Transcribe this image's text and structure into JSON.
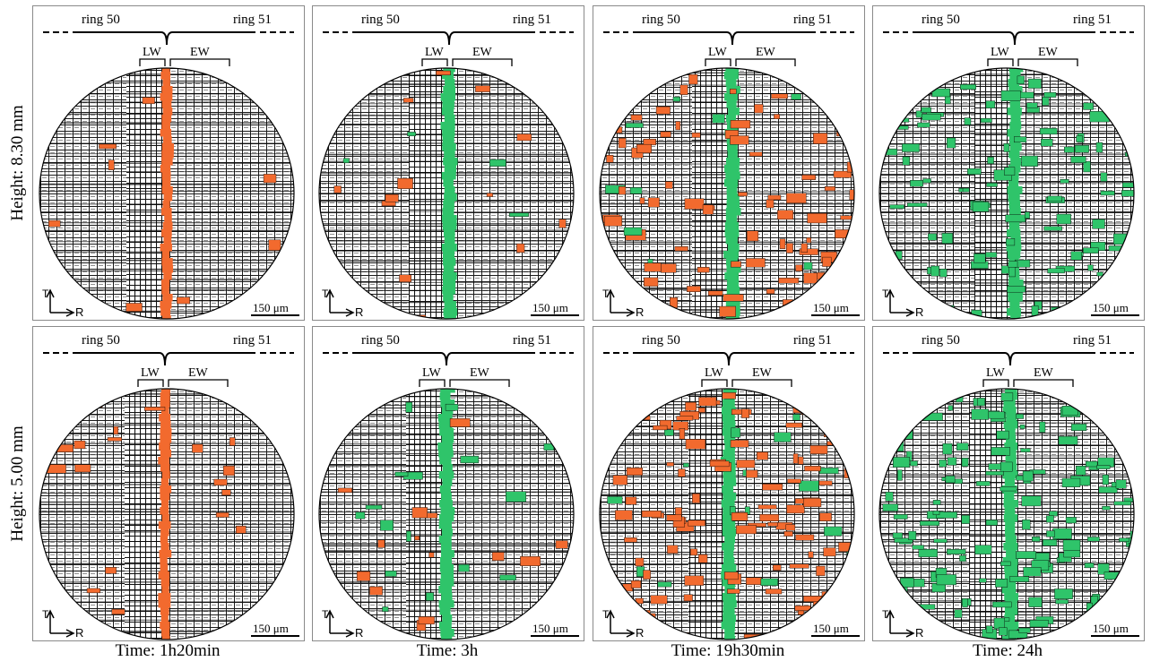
{
  "row_labels": [
    "Height: 8.30 mm",
    "Height: 5.00 mm"
  ],
  "column_labels": [
    "Time: 1h20min",
    "Time: 3h",
    "Time: 19h30min",
    "Time: 24h"
  ],
  "panel_text": {
    "ring_left": "ring 50",
    "ring_right": "ring 51",
    "latewood": "LW",
    "earlywood": "EW",
    "scale_bar": "150 μm",
    "axis_t": "T",
    "axis_r": "R"
  },
  "panels": [
    {
      "row": 0,
      "col": 0,
      "fill": "orange",
      "fill_level": 0.03
    },
    {
      "row": 0,
      "col": 1,
      "fill": "mixed-green",
      "fill_level": 0.05
    },
    {
      "row": 0,
      "col": 2,
      "fill": "orange-green",
      "fill_level": 0.25
    },
    {
      "row": 0,
      "col": 3,
      "fill": "green",
      "fill_level": 0.3
    },
    {
      "row": 1,
      "col": 0,
      "fill": "orange",
      "fill_level": 0.06
    },
    {
      "row": 1,
      "col": 1,
      "fill": "mixed-green",
      "fill_level": 0.1
    },
    {
      "row": 1,
      "col": 2,
      "fill": "orange-green",
      "fill_level": 0.35
    },
    {
      "row": 1,
      "col": 3,
      "fill": "green",
      "fill_level": 0.4
    }
  ],
  "colors": {
    "orange": "#f26a2e",
    "green": "#2fc46a",
    "cells": "#1a1a1a",
    "panel_border": "#8a8a8a"
  }
}
